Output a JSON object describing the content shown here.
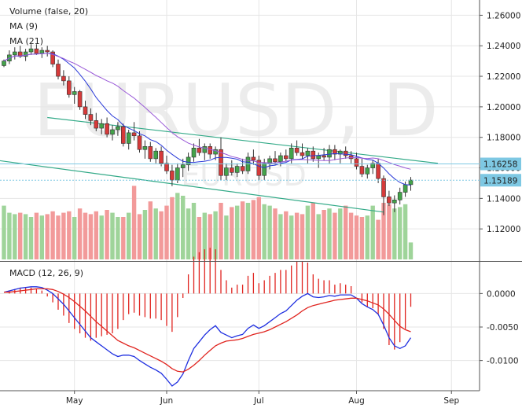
{
  "chart_data": {
    "type": "candlestick",
    "watermark": {
      "symbol": "EURUSD, D",
      "sub": "EURUSD"
    },
    "legend": [
      "Volume (false, 20)",
      "MA (9)",
      "MA (21)"
    ],
    "macd_label": "MACD (12, 26, 9)",
    "price_axis": {
      "ylim": [
        1.1,
        1.27
      ],
      "ticks": [
        "1.26000",
        "1.24000",
        "1.22000",
        "1.20000",
        "1.18000",
        "1.16000",
        "1.14000",
        "1.12000"
      ]
    },
    "macd_axis": {
      "ylim": [
        -0.0145,
        0.0045
      ],
      "ticks": [
        "0.0000",
        "-0.0050",
        "-0.0100"
      ]
    },
    "x_labels": [
      "May",
      "Jun",
      "Jul",
      "Aug",
      "Sep"
    ],
    "price_tags": [
      {
        "value": 1.16258,
        "label": "1.16258",
        "color": "#7ec8e3"
      },
      {
        "value": 1.15189,
        "label": "1.15189",
        "color": "#7ec8e3"
      }
    ],
    "candles": [
      [
        1.227,
        1.231,
        1.226,
        1.23
      ],
      [
        1.23,
        1.237,
        1.228,
        1.234
      ],
      [
        1.234,
        1.239,
        1.231,
        1.236
      ],
      [
        1.236,
        1.24,
        1.232,
        1.233
      ],
      [
        1.233,
        1.238,
        1.23,
        1.236
      ],
      [
        1.236,
        1.241,
        1.234,
        1.238
      ],
      [
        1.238,
        1.241,
        1.234,
        1.235
      ],
      [
        1.235,
        1.239,
        1.232,
        1.237
      ],
      [
        1.237,
        1.24,
        1.233,
        1.236
      ],
      [
        1.236,
        1.237,
        1.226,
        1.228
      ],
      [
        1.228,
        1.231,
        1.218,
        1.22
      ],
      [
        1.22,
        1.224,
        1.214,
        1.217
      ],
      [
        1.217,
        1.22,
        1.206,
        1.208
      ],
      [
        1.208,
        1.213,
        1.202,
        1.21
      ],
      [
        1.21,
        1.211,
        1.198,
        1.2
      ],
      [
        1.2,
        1.204,
        1.192,
        1.195
      ],
      [
        1.195,
        1.199,
        1.188,
        1.191
      ],
      [
        1.191,
        1.196,
        1.184,
        1.186
      ],
      [
        1.186,
        1.192,
        1.182,
        1.189
      ],
      [
        1.189,
        1.193,
        1.18,
        1.182
      ],
      [
        1.182,
        1.188,
        1.178,
        1.185
      ],
      [
        1.185,
        1.19,
        1.181,
        1.187
      ],
      [
        1.187,
        1.189,
        1.174,
        1.176
      ],
      [
        1.176,
        1.185,
        1.172,
        1.183
      ],
      [
        1.183,
        1.19,
        1.178,
        1.181
      ],
      [
        1.181,
        1.184,
        1.17,
        1.172
      ],
      [
        1.172,
        1.178,
        1.166,
        1.174
      ],
      [
        1.174,
        1.177,
        1.164,
        1.166
      ],
      [
        1.166,
        1.173,
        1.163,
        1.171
      ],
      [
        1.171,
        1.174,
        1.161,
        1.163
      ],
      [
        1.163,
        1.168,
        1.156,
        1.158
      ],
      [
        1.158,
        1.162,
        1.148,
        1.152
      ],
      [
        1.152,
        1.163,
        1.15,
        1.16
      ],
      [
        1.16,
        1.166,
        1.154,
        1.162
      ],
      [
        1.162,
        1.17,
        1.158,
        1.167
      ],
      [
        1.167,
        1.176,
        1.164,
        1.173
      ],
      [
        1.173,
        1.179,
        1.168,
        1.17
      ],
      [
        1.17,
        1.176,
        1.165,
        1.174
      ],
      [
        1.174,
        1.176,
        1.166,
        1.169
      ],
      [
        1.169,
        1.174,
        1.165,
        1.172
      ],
      [
        1.172,
        1.18,
        1.152,
        1.155
      ],
      [
        1.155,
        1.163,
        1.152,
        1.16
      ],
      [
        1.16,
        1.165,
        1.155,
        1.157
      ],
      [
        1.157,
        1.163,
        1.154,
        1.161
      ],
      [
        1.161,
        1.166,
        1.156,
        1.158
      ],
      [
        1.158,
        1.17,
        1.156,
        1.167
      ],
      [
        1.167,
        1.172,
        1.162,
        1.165
      ],
      [
        1.165,
        1.168,
        1.152,
        1.155
      ],
      [
        1.155,
        1.166,
        1.152,
        1.163
      ],
      [
        1.163,
        1.168,
        1.159,
        1.166
      ],
      [
        1.166,
        1.171,
        1.162,
        1.164
      ],
      [
        1.164,
        1.17,
        1.161,
        1.168
      ],
      [
        1.168,
        1.172,
        1.164,
        1.166
      ],
      [
        1.166,
        1.176,
        1.163,
        1.173
      ],
      [
        1.173,
        1.178,
        1.168,
        1.17
      ],
      [
        1.17,
        1.176,
        1.166,
        1.168
      ],
      [
        1.168,
        1.173,
        1.163,
        1.171
      ],
      [
        1.171,
        1.174,
        1.164,
        1.166
      ],
      [
        1.166,
        1.17,
        1.16,
        1.168
      ],
      [
        1.168,
        1.173,
        1.165,
        1.167
      ],
      [
        1.167,
        1.175,
        1.163,
        1.172
      ],
      [
        1.172,
        1.175,
        1.165,
        1.169
      ],
      [
        1.169,
        1.172,
        1.163,
        1.171
      ],
      [
        1.171,
        1.174,
        1.166,
        1.168
      ],
      [
        1.168,
        1.171,
        1.163,
        1.166
      ],
      [
        1.166,
        1.17,
        1.159,
        1.161
      ],
      [
        1.161,
        1.166,
        1.154,
        1.156
      ],
      [
        1.156,
        1.162,
        1.153,
        1.16
      ],
      [
        1.16,
        1.165,
        1.156,
        1.163
      ],
      [
        1.163,
        1.166,
        1.15,
        1.153
      ],
      [
        1.153,
        1.155,
        1.129,
        1.141
      ],
      [
        1.141,
        1.145,
        1.135,
        1.137
      ],
      [
        1.137,
        1.142,
        1.131,
        1.139
      ],
      [
        1.139,
        1.147,
        1.136,
        1.144
      ],
      [
        1.144,
        1.151,
        1.141,
        1.149
      ],
      [
        1.149,
        1.154,
        1.145,
        1.152
      ]
    ],
    "volume": [
      0.38,
      0.33,
      0.32,
      0.33,
      0.32,
      0.3,
      0.33,
      0.31,
      0.32,
      0.34,
      0.31,
      0.33,
      0.34,
      0.3,
      0.36,
      0.33,
      0.32,
      0.34,
      0.31,
      0.35,
      0.33,
      0.3,
      0.3,
      0.33,
      0.52,
      0.32,
      0.35,
      0.41,
      0.36,
      0.34,
      0.38,
      0.44,
      0.47,
      0.45,
      0.36,
      0.4,
      0.3,
      0.33,
      0.32,
      0.34,
      0.4,
      0.31,
      0.37,
      0.38,
      0.41,
      0.4,
      0.42,
      0.44,
      0.39,
      0.38,
      0.36,
      0.32,
      0.34,
      0.31,
      0.33,
      0.32,
      0.38,
      0.4,
      0.32,
      0.35,
      0.36,
      0.33,
      0.36,
      0.38,
      0.33,
      0.31,
      0.3,
      0.31,
      0.38,
      0.28,
      0.4,
      0.39,
      0.36,
      0.37,
      0.39,
      0.12
    ],
    "volume_scale": 1.0,
    "trendlines": [
      {
        "from": [
          8,
          1.193
        ],
        "to": [
          80,
          1.163
        ]
      },
      {
        "from": [
          -14,
          1.171
        ],
        "to": [
          70,
          1.131
        ]
      }
    ],
    "macd": [
      0.0002,
      0.0004,
      0.0006,
      0.0008,
      0.0009,
      0.001,
      0.001,
      0.0009,
      0.0005,
      0.0,
      -0.0008,
      -0.0016,
      -0.0026,
      -0.0036,
      -0.0046,
      -0.0056,
      -0.0066,
      -0.0072,
      -0.0078,
      -0.0084,
      -0.009,
      -0.0094,
      -0.0092,
      -0.0092,
      -0.0094,
      -0.01,
      -0.0105,
      -0.011,
      -0.0114,
      -0.0119,
      -0.0128,
      -0.0138,
      -0.0132,
      -0.012,
      -0.01,
      -0.0082,
      -0.0072,
      -0.0062,
      -0.0054,
      -0.0048,
      -0.0058,
      -0.0062,
      -0.0066,
      -0.0063,
      -0.0061,
      -0.0052,
      -0.0047,
      -0.0052,
      -0.0048,
      -0.0042,
      -0.0036,
      -0.003,
      -0.0026,
      -0.0018,
      -0.001,
      -0.0004,
      0.0,
      -0.0005,
      -0.0006,
      -0.0005,
      -0.0003,
      -0.0004,
      -0.0002,
      -0.0002,
      -0.0002,
      -0.0007,
      -0.0015,
      -0.002,
      -0.0024,
      -0.0031,
      -0.0047,
      -0.0066,
      -0.0078,
      -0.0082,
      -0.0078,
      -0.0066
    ],
    "signal": [
      0.0002,
      0.0002,
      0.0003,
      0.0004,
      0.0005,
      0.0006,
      0.0007,
      0.0007,
      0.0007,
      0.0006,
      0.0003,
      -0.0001,
      -0.0006,
      -0.0012,
      -0.0019,
      -0.0026,
      -0.0034,
      -0.0042,
      -0.0049,
      -0.0056,
      -0.0063,
      -0.007,
      -0.0074,
      -0.0078,
      -0.0081,
      -0.0085,
      -0.0089,
      -0.0093,
      -0.0097,
      -0.0101,
      -0.0106,
      -0.0112,
      -0.0116,
      -0.0117,
      -0.0113,
      -0.0107,
      -0.01,
      -0.0092,
      -0.0085,
      -0.0078,
      -0.0074,
      -0.0071,
      -0.007,
      -0.0069,
      -0.0067,
      -0.0064,
      -0.0061,
      -0.0059,
      -0.0057,
      -0.0054,
      -0.005,
      -0.0046,
      -0.0042,
      -0.0037,
      -0.0032,
      -0.0026,
      -0.0021,
      -0.0018,
      -0.0016,
      -0.0014,
      -0.0012,
      -0.001,
      -0.0009,
      -0.0008,
      -0.0007,
      -0.0007,
      -0.0009,
      -0.0011,
      -0.0014,
      -0.0017,
      -0.0023,
      -0.0031,
      -0.004,
      -0.0049,
      -0.0054,
      -0.0057
    ],
    "colors": {
      "up": "#43a34a",
      "down": "#d63a3a",
      "vol_up": "#9fd49a",
      "vol_down": "#f29a9a",
      "ma9": "#2a3ad8",
      "ma21": "#9a5ad8",
      "trend": "#33aa88",
      "macd": "#1f2fe0",
      "signal": "#e0241f",
      "hist": "#e0241f"
    }
  }
}
